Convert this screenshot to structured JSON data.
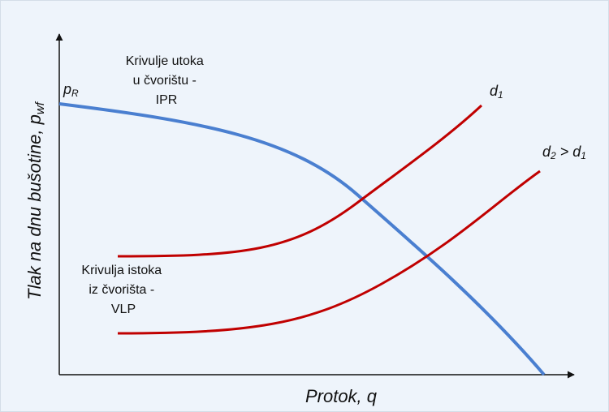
{
  "diagram": {
    "x_axis_label": {
      "text": "Protok, q"
    },
    "y_axis_label": {
      "text": "Tlak na dnu bušotine, p",
      "subscript": "wf"
    },
    "ipr_label": {
      "lines": [
        "Krivulje utoka",
        "u čvorištu -",
        "IPR"
      ]
    },
    "vlp_label": {
      "lines": [
        "Krivulja istoka",
        "iz čvorišta -",
        "VLP"
      ]
    },
    "pr_label": {
      "text": "p",
      "subscript": "R"
    },
    "d1_label": {
      "text": "d",
      "subscript": "1"
    },
    "d2_label": {
      "parts": [
        "d",
        "2",
        " > d",
        "1"
      ]
    }
  }
}
